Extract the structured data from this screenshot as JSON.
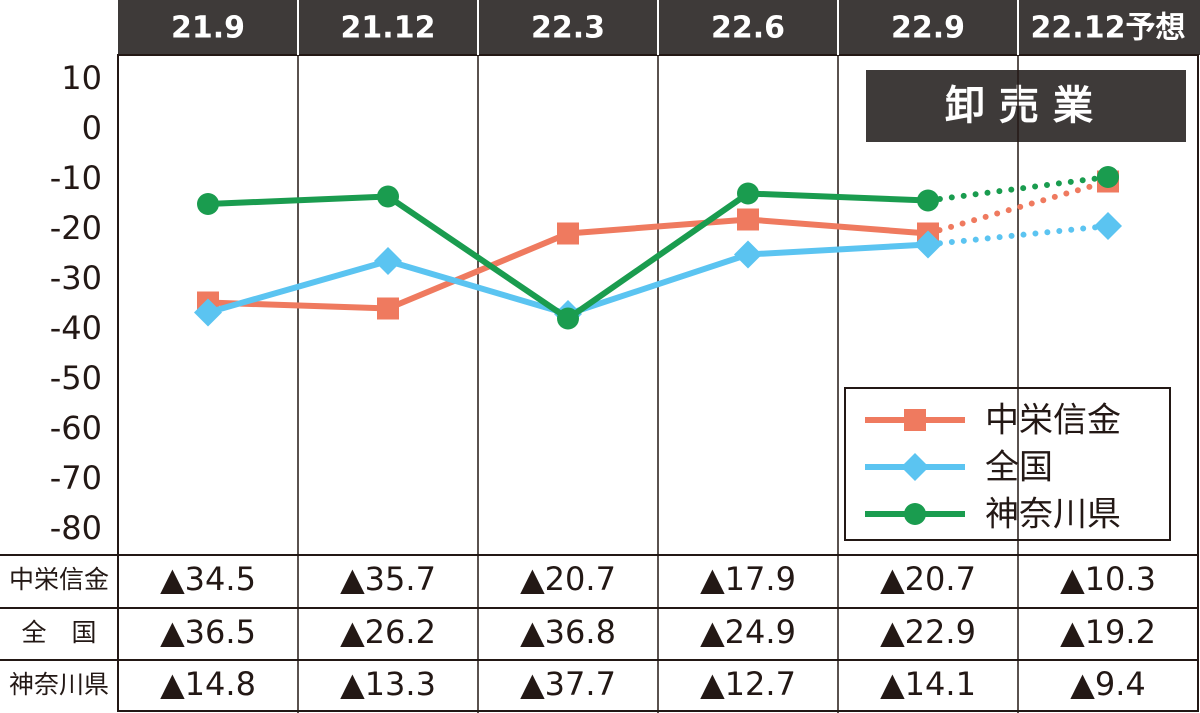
{
  "chart_data": {
    "type": "line",
    "title": "卸売業",
    "categories": [
      "21.9",
      "21.12",
      "22.3",
      "22.6",
      "22.9",
      "22.12予想"
    ],
    "series": [
      {
        "name": "中栄信金",
        "color": "#ef7a5f",
        "marker": "square",
        "values": [
          -34.5,
          -35.7,
          -20.7,
          -17.9,
          -20.7,
          -10.3
        ],
        "value_labels": [
          "▲34.5",
          "▲35.7",
          "▲20.7",
          "▲17.9",
          "▲20.7",
          "▲10.3"
        ]
      },
      {
        "name": "全国",
        "color": "#5bc4f1",
        "marker": "diamond",
        "values": [
          -36.5,
          -26.2,
          -36.8,
          -24.9,
          -22.9,
          -19.2
        ],
        "value_labels": [
          "▲36.5",
          "▲26.2",
          "▲36.8",
          "▲24.9",
          "▲22.9",
          "▲19.2"
        ]
      },
      {
        "name": "神奈川県",
        "color": "#1a9c4f",
        "marker": "circle",
        "values": [
          -14.8,
          -13.3,
          -37.7,
          -12.7,
          -14.1,
          -9.4
        ],
        "value_labels": [
          "▲14.8",
          "▲13.3",
          "▲37.7",
          "▲12.7",
          "▲14.1",
          "▲9.4"
        ]
      }
    ],
    "table_row_labels": [
      "中栄信金",
      "全　国",
      "神奈川県"
    ],
    "ylim": [
      -85,
      15
    ],
    "yticks": [
      10,
      0,
      -10,
      -20,
      -30,
      -40,
      -50,
      -60,
      -70,
      -80
    ],
    "dotted_last_segment": true,
    "grid": false
  }
}
